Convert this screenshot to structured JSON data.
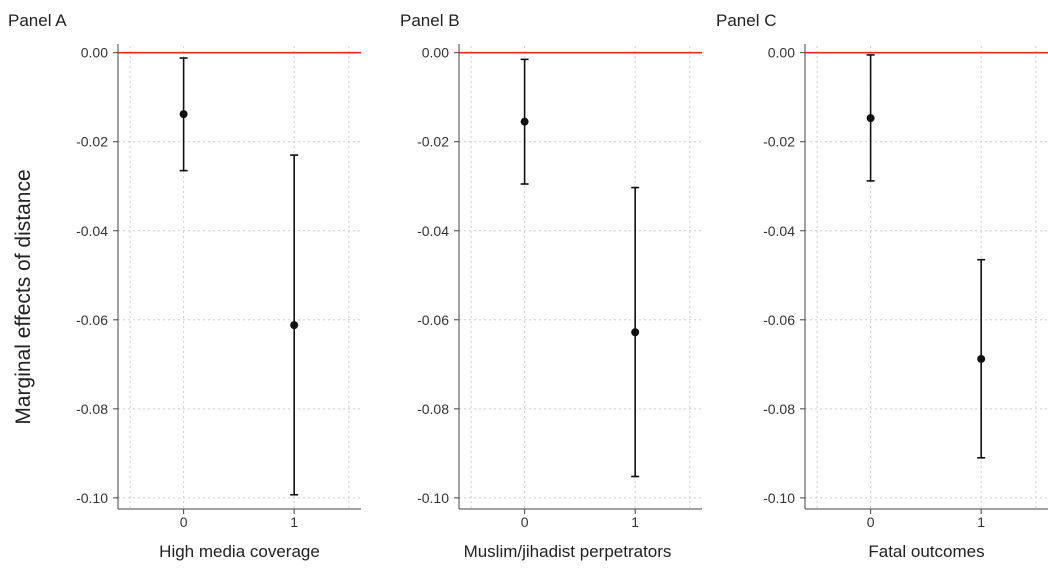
{
  "ylabel": "Marginal effects of distance",
  "colors": {
    "reference_line": "#e8281e",
    "marker": "#111111",
    "grid": "#cccccc",
    "axis": "#444444"
  },
  "chart_data": [
    {
      "type": "scatter",
      "title": "Panel A",
      "xlabel": "High media coverage",
      "ylabel": "Marginal effects of distance",
      "categories": [
        "0",
        "1"
      ],
      "values": [
        -0.0138,
        -0.0612
      ],
      "ci_lower": [
        -0.0265,
        -0.0993
      ],
      "ci_upper": [
        -0.0012,
        -0.023
      ],
      "reference_line": 0,
      "ylim": [
        -0.1025,
        0.0015
      ],
      "yticks": [
        "0.00",
        "-0.02",
        "-0.04",
        "-0.06",
        "-0.08",
        "-0.10"
      ],
      "grid": true
    },
    {
      "type": "scatter",
      "title": "Panel B",
      "xlabel": "Muslim/jihadist perpetrators",
      "ylabel": "Marginal effects of distance",
      "categories": [
        "0",
        "1"
      ],
      "values": [
        -0.0155,
        -0.0628
      ],
      "ci_lower": [
        -0.0295,
        -0.0952
      ],
      "ci_upper": [
        -0.0015,
        -0.0303
      ],
      "reference_line": 0,
      "ylim": [
        -0.1025,
        0.0015
      ],
      "yticks": [
        "0.00",
        "-0.02",
        "-0.04",
        "-0.06",
        "-0.08",
        "-0.10"
      ],
      "grid": true
    },
    {
      "type": "scatter",
      "title": "Panel C",
      "xlabel": "Fatal outcomes",
      "ylabel": "Marginal effects of distance",
      "categories": [
        "0",
        "1"
      ],
      "values": [
        -0.0147,
        -0.0688
      ],
      "ci_lower": [
        -0.0288,
        -0.091
      ],
      "ci_upper": [
        -0.0005,
        -0.0465
      ],
      "reference_line": 0,
      "ylim": [
        -0.1025,
        0.0015
      ],
      "yticks": [
        "0.00",
        "-0.02",
        "-0.04",
        "-0.06",
        "-0.08",
        "-0.10"
      ],
      "grid": true
    }
  ]
}
